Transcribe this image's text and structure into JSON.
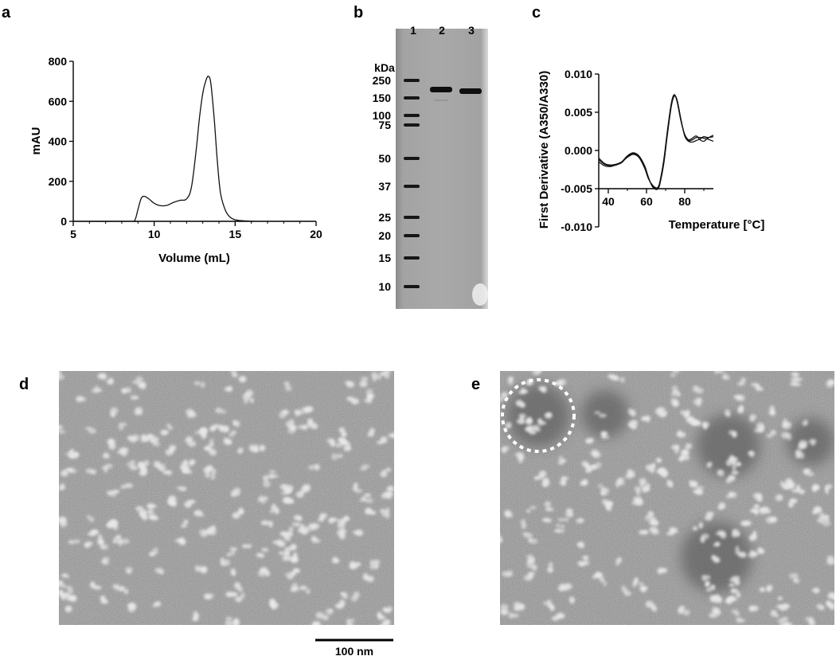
{
  "panel_labels": {
    "a": "a",
    "b": "b",
    "c": "c",
    "d": "d",
    "e": "e"
  },
  "chart_data": [
    {
      "type": "line",
      "panel": "a",
      "xlabel": "Volume (mL)",
      "ylabel": "mAU",
      "xlim": [
        5,
        20
      ],
      "ylim": [
        0,
        800
      ],
      "xticks": [
        5,
        10,
        15,
        20
      ],
      "yticks": [
        0,
        200,
        400,
        600,
        800
      ],
      "series": [
        {
          "x": [
            5.0,
            8.5,
            8.8,
            9.0,
            9.2,
            9.4,
            9.7,
            10.0,
            10.4,
            10.8,
            11.2,
            11.6,
            12.0,
            12.3,
            12.6,
            12.8,
            13.0,
            13.2,
            13.35,
            13.5,
            13.7,
            13.9,
            14.1,
            14.4,
            14.7,
            15.0,
            15.4,
            15.8,
            16.2
          ],
          "y": [
            0,
            0,
            5,
            60,
            115,
            125,
            110,
            90,
            78,
            80,
            95,
            105,
            112,
            170,
            360,
            520,
            640,
            705,
            725,
            690,
            520,
            300,
            140,
            55,
            20,
            8,
            3,
            1,
            0
          ]
        }
      ]
    },
    {
      "type": "line",
      "panel": "c",
      "xlabel": "Temperature [°C]",
      "ylabel": "First Derivative (A350/A330)",
      "xlim": [
        35,
        95
      ],
      "ylim": [
        -0.01,
        0.01
      ],
      "xticks": [
        40,
        60,
        80
      ],
      "yticks": [
        -0.01,
        -0.005,
        0.0,
        0.005,
        0.01
      ],
      "yticklabels": [
        "-0.010",
        "-0.005",
        "0.000",
        "0.005",
        "0.010"
      ],
      "series": [
        {
          "x": [
            35,
            38,
            41,
            44,
            47,
            50,
            53,
            56,
            59,
            61,
            63,
            65,
            66,
            67,
            69,
            71,
            73,
            74.5,
            76,
            78,
            80,
            82,
            84,
            86,
            88,
            90,
            92,
            95
          ],
          "y": [
            -0.0012,
            -0.0018,
            -0.002,
            -0.0019,
            -0.0016,
            -0.0008,
            -0.0004,
            -0.0008,
            -0.0022,
            -0.0036,
            -0.0046,
            -0.005,
            -0.0049,
            -0.0042,
            -0.0015,
            0.0025,
            0.006,
            0.0072,
            0.0065,
            0.004,
            0.002,
            0.0013,
            0.0014,
            0.0017,
            0.0017,
            0.0016,
            0.0015,
            0.0012
          ]
        },
        {
          "x": [
            35,
            38,
            41,
            44,
            47,
            50,
            53,
            56,
            59,
            61,
            63,
            65,
            66,
            67,
            69,
            71,
            73,
            74.5,
            76,
            78,
            80,
            82,
            84,
            86,
            88,
            90,
            92,
            95
          ],
          "y": [
            -0.0015,
            -0.002,
            -0.0021,
            -0.0019,
            -0.0015,
            -0.0007,
            -0.0003,
            -0.0007,
            -0.002,
            -0.0035,
            -0.0047,
            -0.0051,
            -0.005,
            -0.0044,
            -0.0018,
            0.0022,
            0.0058,
            0.0071,
            0.0066,
            0.0041,
            0.0019,
            0.0012,
            0.0011,
            0.0013,
            0.0015,
            0.0018,
            0.0017,
            0.0018
          ]
        },
        {
          "x": [
            35,
            38,
            41,
            44,
            47,
            50,
            53,
            56,
            59,
            61,
            63,
            65,
            66,
            67,
            69,
            71,
            73,
            74.5,
            76,
            78,
            80,
            82,
            84,
            86,
            88,
            90,
            92,
            95
          ],
          "y": [
            -0.001,
            -0.0017,
            -0.0019,
            -0.0018,
            -0.0015,
            -0.0009,
            -0.0005,
            -0.0009,
            -0.0023,
            -0.0037,
            -0.0045,
            -0.0049,
            -0.0048,
            -0.0041,
            -0.0013,
            0.0027,
            0.0062,
            0.0073,
            0.0064,
            0.0039,
            0.0021,
            0.0014,
            0.0016,
            0.0019,
            0.0014,
            0.0012,
            0.0016,
            0.002
          ]
        }
      ]
    }
  ],
  "gel": {
    "lane_labels": [
      "1",
      "2",
      "3"
    ],
    "unit": "kDa",
    "markers": [
      "250",
      "150",
      "100",
      "75",
      "50",
      "37",
      "25",
      "20",
      "15",
      "10"
    ],
    "marker_kda": [
      250,
      150,
      100,
      75,
      50,
      37,
      25,
      20,
      15,
      10
    ]
  },
  "micrographs": {
    "scale_bar_label": "100 nm"
  }
}
